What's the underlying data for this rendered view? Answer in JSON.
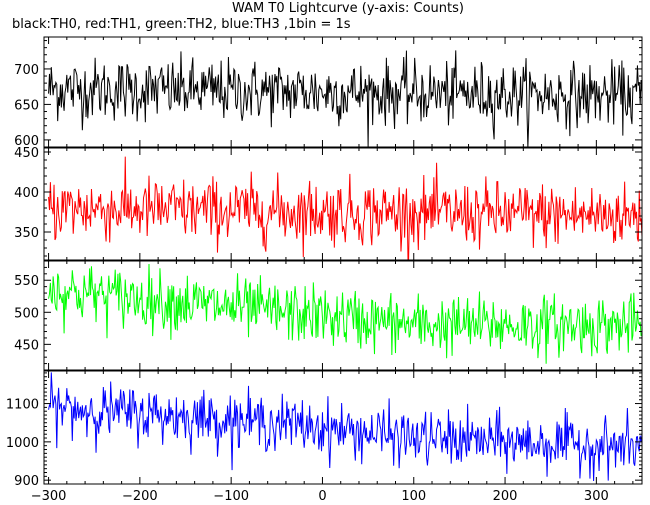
{
  "chart_data": {
    "type": "line",
    "title": "WAM T0 Lightcurve (y-axis: Counts)",
    "subtitle": "black:TH0, red:TH1, green:TH2, blue:TH3 ,1bin = 1s",
    "xlim": [
      -305,
      350
    ],
    "x_ticks": [
      -300,
      -200,
      -100,
      0,
      100,
      200,
      300
    ],
    "grid": false,
    "panels": [
      {
        "name": "TH0",
        "color": "#000000",
        "ylim": [
          590,
          745
        ],
        "y_ticks": [
          600,
          650,
          700
        ],
        "trend": {
          "x": [
            -300,
            350
          ],
          "mean": [
            672,
            662
          ]
        },
        "noise_sd": 22
      },
      {
        "name": "TH1",
        "color": "#ff0000",
        "ylim": [
          315,
          455
        ],
        "y_ticks": [
          350,
          400,
          450
        ],
        "trend": {
          "x": [
            -300,
            350
          ],
          "mean": [
            380,
            370
          ]
        },
        "noise_sd": 20
      },
      {
        "name": "TH2",
        "color": "#00ff00",
        "ylim": [
          410,
          580
        ],
        "y_ticks": [
          450,
          500,
          550
        ],
        "trend": {
          "x": [
            -300,
            -150,
            100,
            350
          ],
          "mean": [
            535,
            515,
            480,
            480
          ]
        },
        "noise_sd": 23
      },
      {
        "name": "TH3",
        "color": "#0000ff",
        "ylim": [
          890,
          1185
        ],
        "y_ticks": [
          900,
          1000,
          1100
        ],
        "trend": {
          "x": [
            -300,
            -50,
            100,
            350
          ],
          "mean": [
            1090,
            1050,
            1010,
            985
          ]
        },
        "noise_sd": 35
      }
    ]
  }
}
